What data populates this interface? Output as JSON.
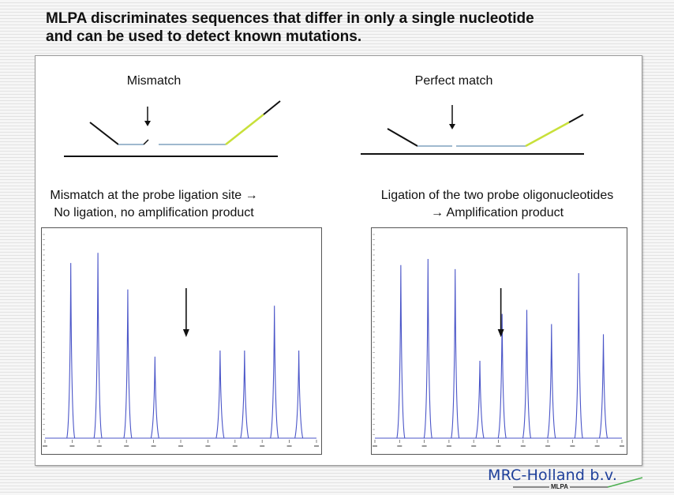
{
  "title": {
    "line1": "MLPA discriminates sequences that differ in only a single nucleotide",
    "line2": "and can be used to detect known mutations."
  },
  "left": {
    "heading": "Mismatch",
    "caption_line1": "Mismatch at the probe ligation site →",
    "caption_line2": "No ligation, no amplification product",
    "chart_data": {
      "type": "line",
      "description_type": "electropherogram",
      "peaks": [
        {
          "x": 0.095,
          "height": 0.86
        },
        {
          "x": 0.195,
          "height": 0.91
        },
        {
          "x": 0.305,
          "height": 0.73
        },
        {
          "x": 0.405,
          "height": 0.4
        },
        {
          "x": 0.645,
          "height": 0.43
        },
        {
          "x": 0.735,
          "height": 0.43
        },
        {
          "x": 0.845,
          "height": 0.65
        },
        {
          "x": 0.935,
          "height": 0.43
        }
      ],
      "arrow_x": 0.52
    }
  },
  "right": {
    "heading": "Perfect match",
    "caption_line1": "Ligation of the two probe oligonucleotides",
    "caption_line2": "→ Amplification product",
    "chart_data": {
      "type": "line",
      "description_type": "electropherogram",
      "peaks": [
        {
          "x": 0.105,
          "height": 0.85
        },
        {
          "x": 0.215,
          "height": 0.88
        },
        {
          "x": 0.325,
          "height": 0.83
        },
        {
          "x": 0.425,
          "height": 0.38
        },
        {
          "x": 0.515,
          "height": 0.61
        },
        {
          "x": 0.615,
          "height": 0.63
        },
        {
          "x": 0.715,
          "height": 0.56
        },
        {
          "x": 0.825,
          "height": 0.81
        },
        {
          "x": 0.925,
          "height": 0.51
        }
      ],
      "arrow_x": 0.51
    }
  },
  "brand": {
    "name": "MRC-Holland b.v.",
    "sub": "MLPA"
  },
  "colors": {
    "peak": "#4a55c8",
    "probe_green": "#c8e03a",
    "probe_blue": "#9fb9cf",
    "brand_blue": "#1e3f9a"
  }
}
